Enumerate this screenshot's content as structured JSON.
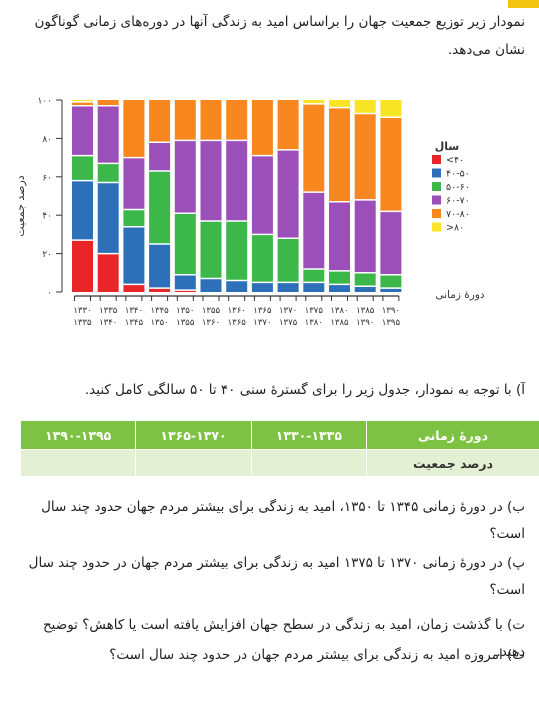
{
  "intro_text": "نمودار زیر توزیع جمعیت جهان را براساس امید به زندگی آنها در دوره‌های زمانی گوناگون نشان می‌دهد.",
  "chart_data": {
    "type": "bar",
    "stacked": true,
    "ylabel": "درصد جمعیت",
    "xlabel": "دورهٔ زمانی",
    "ylim": [
      0,
      100
    ],
    "yticks": [
      "۰",
      "۲۰",
      "۴۰",
      "۶۰",
      "۸۰",
      "۱۰۰"
    ],
    "categories_top": [
      "۱۳۳۰",
      "۱۳۳۵",
      "۱۳۴۰",
      "۱۳۴۵",
      "۱۳۵۰",
      "۱۳۵۵",
      "۱۳۶۰",
      "۱۳۶۵",
      "۱۳۷۰",
      "۱۳۷۵",
      "۱۳۸۰",
      "۱۳۸۵",
      "۱۳۹۰"
    ],
    "categories_bottom": [
      "۱۳۳۵",
      "۱۳۴۰",
      "۱۳۴۵",
      "۱۳۵۰",
      "۱۳۵۵",
      "۱۳۶۰",
      "۱۳۶۵",
      "۱۳۷۰",
      "۱۳۷۵",
      "۱۳۸۰",
      "۱۳۸۵",
      "۱۳۹۰",
      "۱۳۹۵"
    ],
    "legend_title": "سال",
    "legend_position": "right",
    "series": [
      {
        "name": "<۴۰",
        "color": "#e8262a",
        "values": [
          27,
          20,
          4,
          2,
          1,
          0,
          0,
          0,
          0,
          0,
          0,
          0,
          0
        ]
      },
      {
        "name": "۴۰-۵۰",
        "color": "#2e6fba",
        "values": [
          31,
          37,
          30,
          23,
          8,
          7,
          6,
          5,
          5,
          5,
          4,
          3,
          2
        ]
      },
      {
        "name": "۵۰-۶۰",
        "color": "#3cb84a",
        "values": [
          13,
          10,
          9,
          38,
          32,
          30,
          31,
          25,
          23,
          7,
          7,
          7,
          7
        ]
      },
      {
        "name": "۶۰-۷۰",
        "color": "#9b4fb8",
        "values": [
          26,
          30,
          27,
          15,
          38,
          42,
          42,
          41,
          46,
          40,
          36,
          38,
          33
        ]
      },
      {
        "name": "۷۰-۸۰",
        "color": "#f7871e",
        "values": [
          2,
          3,
          30,
          22,
          21,
          21,
          21,
          29,
          26,
          46,
          49,
          45,
          49
        ]
      },
      {
        "name": ">۸۰",
        "color": "#f9e425",
        "values": [
          1,
          0,
          0,
          0,
          0,
          0,
          0,
          0,
          0,
          2,
          4,
          7,
          9
        ]
      }
    ]
  },
  "question_a": "آ) با توجه به نمودار، جدول زیر را برای گسترهٔ سنی ۴۰ تا ۵۰ سالگی کامل کنید.",
  "table": {
    "row1_label": "دورهٔ زمانی",
    "periods": [
      "۱۳۳۰-۱۳۳۵",
      "۱۳۶۵-۱۳۷۰",
      "۱۳۹۰-۱۳۹۵"
    ],
    "row2_label": "درصد جمعیت"
  },
  "question_b": "ب) در دورهٔ زمانی ۱۳۴۵ تا ۱۳۵۰، امید به زندگی برای بیشتر مردم جهان حدود چند سال است؟",
  "question_p": "پ) در دورهٔ زمانی ۱۳۷۰ تا ۱۳۷۵ امید به زندگی برای بیشتر مردم جهان در حدود چند سال است؟",
  "question_t": "ت) با گذشت زمان، امید به زندگی در سطح جهان افزایش یافته است یا کاهش؟ توضیح دهید.",
  "question_s": "ث) امروزه امید به زندگی برای بیشتر مردم جهان در حدود چند سال است؟",
  "colors": {
    "accent": "#f1c40f",
    "table_header": "#7dc242",
    "table_row": "#e3f0d3"
  }
}
